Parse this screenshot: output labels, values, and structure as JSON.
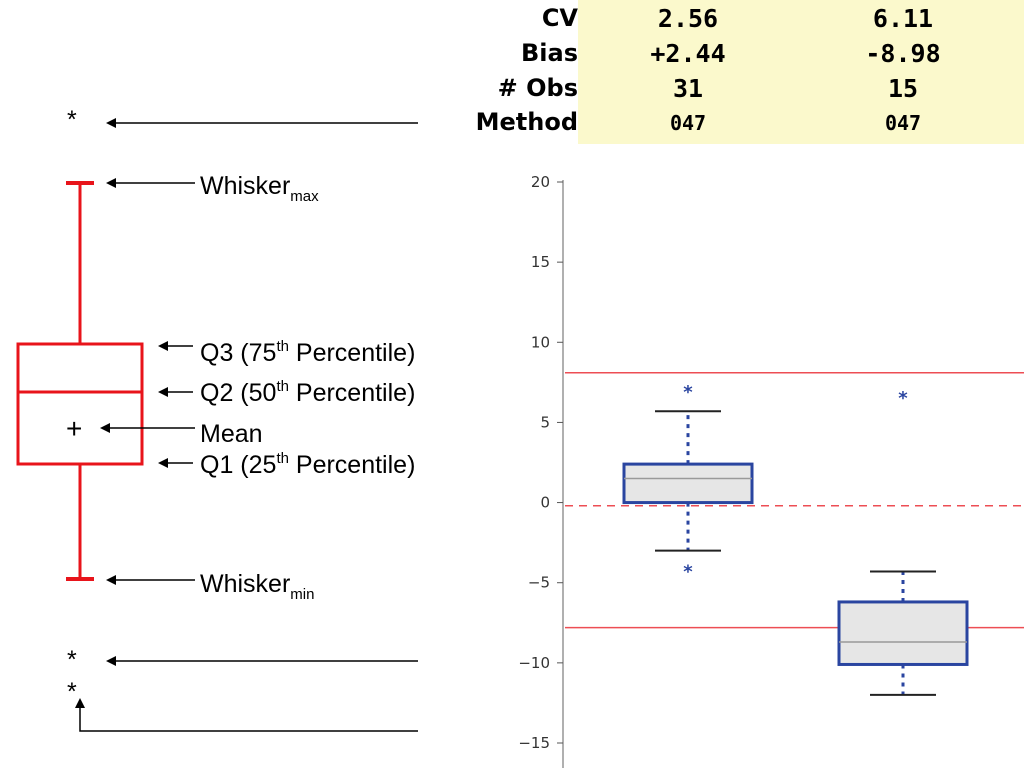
{
  "stats": {
    "labels": [
      "CV",
      "Bias",
      "# Obs",
      "Method"
    ],
    "columns": [
      {
        "cv": "2.56",
        "bias": "+2.44",
        "obs": "31",
        "method": "047"
      },
      {
        "cv": "6.11",
        "bias": "-8.98",
        "obs": "15",
        "method": "047"
      }
    ]
  },
  "legend": {
    "whisker_max": "Whisker",
    "whisker_max_sub": "max",
    "q3": "Q3 (75",
    "q3_sup": "th",
    "q3_tail": " Percentile)",
    "q2": "Q2 (50",
    "q2_sup": "th",
    "q2_tail": " Percentile)",
    "mean": "Mean",
    "q1": "Q1 (25",
    "q1_sup": "th",
    "q1_tail": " Percentile)",
    "whisker_min": "Whisker",
    "whisker_min_sub": "min",
    "outlier_symbol": "*",
    "mean_symbol": "+"
  },
  "colors": {
    "legend_box": "#e8141b",
    "box_edge": "#2a45a0",
    "box_fill": "#e6e6e6",
    "limit_line": "#e8141b",
    "zero_line": "#e8141b",
    "table_bg": "#fbf9cc"
  },
  "chart_data": {
    "type": "box",
    "ylim": [
      -16,
      20
    ],
    "yticks": [
      20,
      15,
      10,
      5,
      0,
      -5,
      -10,
      -15
    ],
    "ytick_labels": [
      "20",
      "15",
      "10",
      "5",
      "0",
      "−5",
      "−10",
      "−15"
    ],
    "reference_lines": [
      {
        "y": 8.1,
        "style": "solid"
      },
      {
        "y": -0.2,
        "style": "dashed"
      },
      {
        "y": -7.8,
        "style": "solid"
      }
    ],
    "boxes": [
      {
        "whisker_low": -3.0,
        "q1": 0.0,
        "median": 1.5,
        "q3": 2.4,
        "whisker_high": 5.7,
        "outliers": [
          7.1,
          -4.1
        ]
      },
      {
        "whisker_low": -12.0,
        "q1": -10.1,
        "median": -8.7,
        "q3": -6.2,
        "whisker_high": -4.3,
        "outliers": [
          6.7
        ]
      }
    ]
  }
}
